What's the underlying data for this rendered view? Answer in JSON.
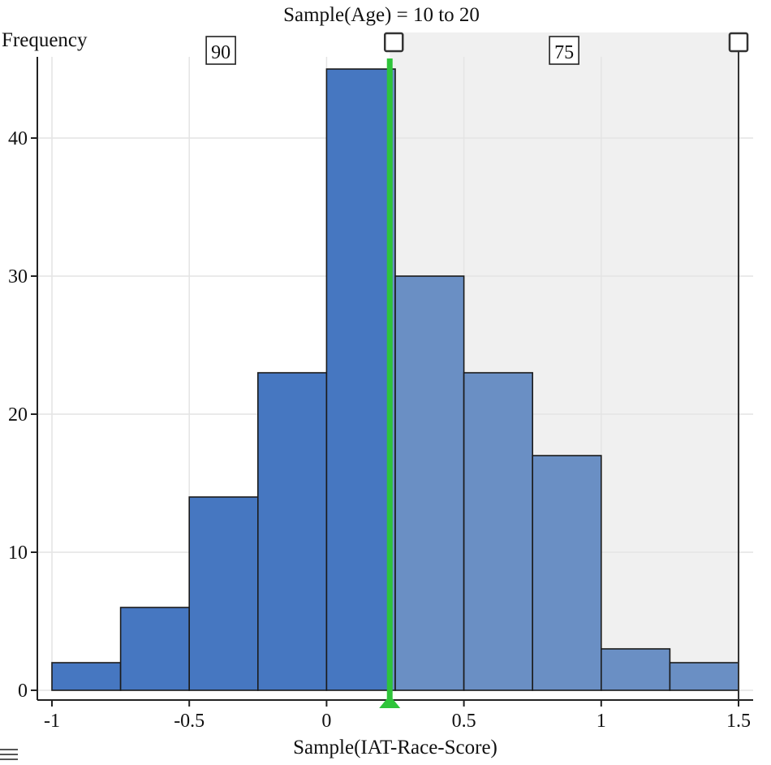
{
  "chart_data": {
    "type": "bar",
    "title": "Sample(Age) = 10 to 20",
    "xlabel": "Sample(IAT-Race-Score)",
    "ylabel": "Frequency",
    "xlim": [
      -1,
      1.5
    ],
    "ylim": [
      0,
      45
    ],
    "x_ticks": [
      -1,
      -0.5,
      0,
      0.5,
      1,
      1.5
    ],
    "x_tick_labels": [
      "-1",
      "-0.5",
      "0",
      "0.5",
      "1",
      "1.5"
    ],
    "y_ticks": [
      0,
      10,
      20,
      30,
      40
    ],
    "y_tick_labels": [
      "0",
      "10",
      "20",
      "30",
      "40"
    ],
    "bins": [
      {
        "x0": -1.0,
        "x1": -0.75,
        "count": 2
      },
      {
        "x0": -0.75,
        "x1": -0.5,
        "count": 6
      },
      {
        "x0": -0.5,
        "x1": -0.25,
        "count": 14
      },
      {
        "x0": -0.25,
        "x1": 0.0,
        "count": 23
      },
      {
        "x0": 0.0,
        "x1": 0.25,
        "count": 45
      },
      {
        "x0": 0.25,
        "x1": 0.5,
        "count": 30
      },
      {
        "x0": 0.5,
        "x1": 0.75,
        "count": 23
      },
      {
        "x0": 0.75,
        "x1": 1.0,
        "count": 17
      },
      {
        "x0": 1.0,
        "x1": 1.25,
        "count": 3
      },
      {
        "x0": 1.25,
        "x1": 1.5,
        "count": 2
      }
    ],
    "divider_x": 0.23,
    "region_counts": [
      {
        "label": "90",
        "from": -1,
        "to": 0.23
      },
      {
        "label": "75",
        "from": 0.23,
        "to": 1.5
      }
    ],
    "grid": true,
    "colors": {
      "bar_left": "#4677c1",
      "bar_right": "#6a8fc4",
      "shaded_region": "#f0f0f0",
      "divider": "#2ec43a",
      "grid": "#e4e4e4"
    }
  }
}
